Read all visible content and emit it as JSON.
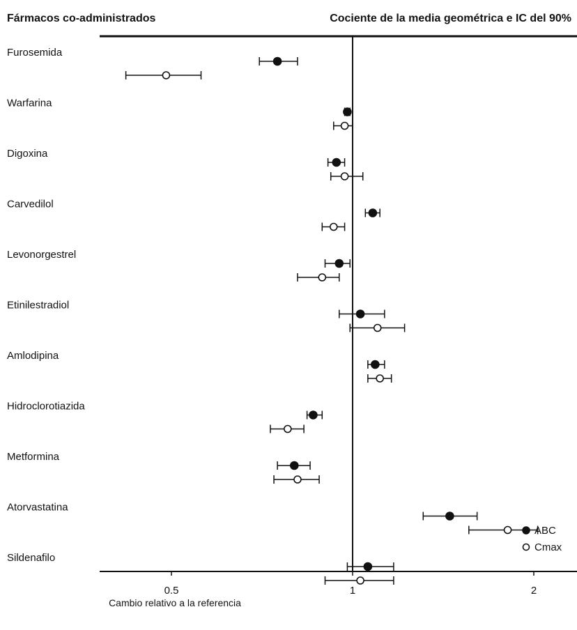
{
  "header": {
    "left_title": "Fármacos co-administrados",
    "right_title": "Cociente de la media geométrica e IC del 90%"
  },
  "chart_data": {
    "type": "scatter",
    "subtype": "forest-plot",
    "title": "Cociente de la media geométrica e IC del 90%",
    "category_axis_title": "Fármacos co-administrados",
    "xlabel": "Cambio relativo a la referencia",
    "x_scale": "log",
    "xlim": [
      0.32,
      2.45
    ],
    "xticks": [
      {
        "value": 0.5,
        "label": "0.5"
      },
      {
        "value": 1,
        "label": "1"
      },
      {
        "value": 2,
        "label": "2"
      }
    ],
    "reference_line": 1,
    "grid": false,
    "legend": {
      "position": "bottom-right",
      "entries": [
        {
          "name": "ABC",
          "marker": "filled-circle"
        },
        {
          "name": "Cmax",
          "marker": "open-circle"
        }
      ]
    },
    "categories": [
      "Furosemida",
      "Warfarina",
      "Digoxina",
      "Carvedilol",
      "Levonorgestrel",
      "Etinilestradiol",
      "Amlodipina",
      "Hidroclorotiazida",
      "Metformina",
      "Atorvastatina",
      "Sildenafilo"
    ],
    "series": [
      {
        "name": "ABC",
        "marker": "filled",
        "points": [
          {
            "drug": "Furosemida",
            "estimate": 0.75,
            "ci": [
              0.7,
              0.81
            ]
          },
          {
            "drug": "Warfarina",
            "estimate": 0.98,
            "ci": [
              0.97,
              0.99
            ]
          },
          {
            "drug": "Digoxina",
            "estimate": 0.94,
            "ci": [
              0.91,
              0.97
            ]
          },
          {
            "drug": "Carvedilol",
            "estimate": 1.08,
            "ci": [
              1.05,
              1.11
            ]
          },
          {
            "drug": "Levonorgestrel",
            "estimate": 0.95,
            "ci": [
              0.9,
              0.99
            ]
          },
          {
            "drug": "Etinilestradiol",
            "estimate": 1.03,
            "ci": [
              0.95,
              1.13
            ]
          },
          {
            "drug": "Amlodipina",
            "estimate": 1.09,
            "ci": [
              1.06,
              1.13
            ]
          },
          {
            "drug": "Hidroclorotiazida",
            "estimate": 0.86,
            "ci": [
              0.84,
              0.89
            ]
          },
          {
            "drug": "Metformina",
            "estimate": 0.8,
            "ci": [
              0.75,
              0.85
            ]
          },
          {
            "drug": "Atorvastatina",
            "estimate": 1.45,
            "ci": [
              1.31,
              1.61
            ]
          },
          {
            "drug": "Sildenafilo",
            "estimate": 1.06,
            "ci": [
              0.98,
              1.17
            ]
          }
        ]
      },
      {
        "name": "Cmax",
        "marker": "open",
        "points": [
          {
            "drug": "Furosemida",
            "estimate": 0.49,
            "ci": [
              0.42,
              0.56
            ]
          },
          {
            "drug": "Warfarina",
            "estimate": 0.97,
            "ci": [
              0.93,
              1.0
            ]
          },
          {
            "drug": "Digoxina",
            "estimate": 0.97,
            "ci": [
              0.92,
              1.04
            ]
          },
          {
            "drug": "Carvedilol",
            "estimate": 0.93,
            "ci": [
              0.89,
              0.97
            ]
          },
          {
            "drug": "Levonorgestrel",
            "estimate": 0.89,
            "ci": [
              0.81,
              0.95
            ]
          },
          {
            "drug": "Etinilestradiol",
            "estimate": 1.1,
            "ci": [
              0.99,
              1.22
            ]
          },
          {
            "drug": "Amlodipina",
            "estimate": 1.11,
            "ci": [
              1.06,
              1.16
            ]
          },
          {
            "drug": "Hidroclorotiazida",
            "estimate": 0.78,
            "ci": [
              0.73,
              0.83
            ]
          },
          {
            "drug": "Metformina",
            "estimate": 0.81,
            "ci": [
              0.74,
              0.88
            ]
          },
          {
            "drug": "Atorvastatina",
            "estimate": 1.81,
            "ci": [
              1.56,
              2.03
            ]
          },
          {
            "drug": "Sildenafilo",
            "estimate": 1.03,
            "ci": [
              0.9,
              1.17
            ]
          }
        ]
      }
    ]
  }
}
